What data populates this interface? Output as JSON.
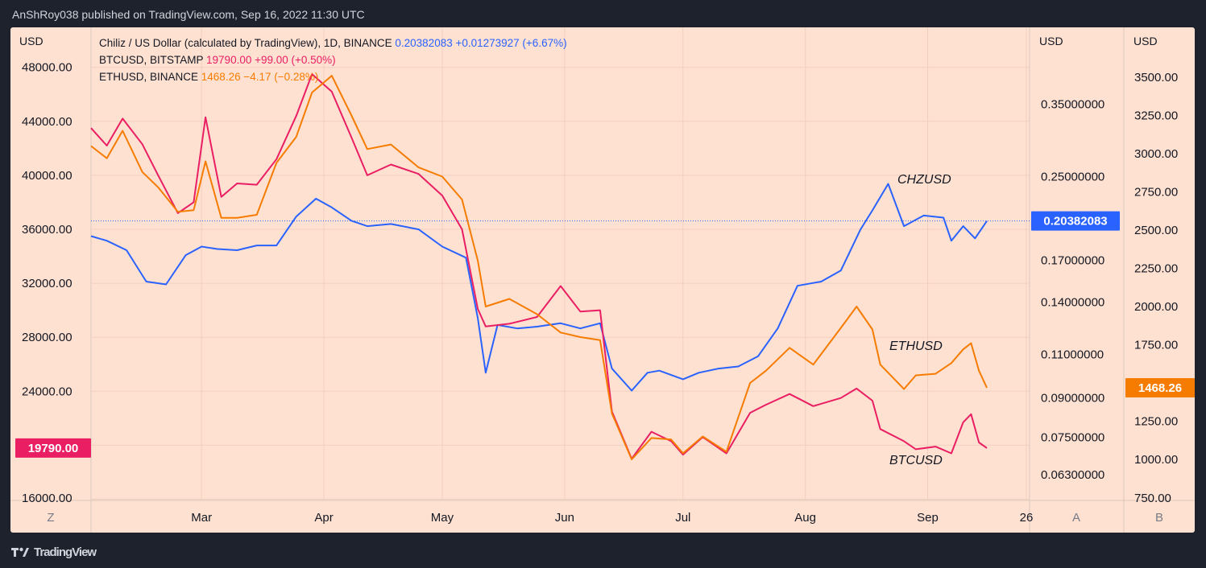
{
  "header": {
    "published_by": "AnShRoy038 published on TradingView.com, Sep 16, 2022 11:30 UTC"
  },
  "footer": {
    "brand": "TradingView",
    "logo_icon": "tradingview-logo-icon"
  },
  "legend": [
    {
      "name": "Chiliz / US Dollar (calculated by TradingView), 1D, BINANCE",
      "value": "0.20382083",
      "change": "+0.01273927 (+6.67%)",
      "color": "#2962ff"
    },
    {
      "name": "BTCUSD, BITSTAMP",
      "value": "19790.00",
      "change": "+99.00 (+0.50%)",
      "color": "#e91e63"
    },
    {
      "name": "ETHUSD, BINANCE",
      "value": "1468.26",
      "change": "−4.17 (−0.28%)",
      "color": "#f57c00"
    }
  ],
  "scales": {
    "left": {
      "currency": "USD",
      "ticks": [
        "48000.00",
        "44000.00",
        "40000.00",
        "36000.00",
        "32000.00",
        "28000.00",
        "24000.00",
        "16000.00"
      ],
      "last_value": "19790.00"
    },
    "middle": {
      "currency": "USD",
      "ticks": [
        "0.35000000",
        "0.25000000",
        "0.17000000",
        "0.14000000",
        "0.11000000",
        "0.09000000",
        "0.07500000",
        "0.06300000"
      ],
      "last_value": "0.20382083"
    },
    "right": {
      "currency": "USD",
      "ticks": [
        "3500.00",
        "3250.00",
        "3000.00",
        "2750.00",
        "2500.00",
        "2250.00",
        "2000.00",
        "1750.00",
        "1250.00",
        "1000.00",
        "750.00"
      ],
      "last_value": "1468.26"
    }
  },
  "time_axis": {
    "labels": [
      "Mar",
      "Apr",
      "May",
      "Jun",
      "Jul",
      "Aug",
      "Sep",
      "26"
    ],
    "corner_left": "Z",
    "corner_mid": "A",
    "corner_right": "B"
  },
  "annotations": [
    "CHZUSD",
    "ETHUSD",
    "BTCUSD"
  ],
  "chart_data": {
    "type": "line",
    "x_range": [
      "2022-02-01",
      "2022-09-16"
    ],
    "series": [
      {
        "name": "CHZUSD",
        "axis": "middle",
        "color": "#2962ff",
        "scale": "log",
        "points": [
          [
            "2022-02-01",
            0.19
          ],
          [
            "2022-02-05",
            0.186
          ],
          [
            "2022-02-10",
            0.178
          ],
          [
            "2022-02-15",
            0.154
          ],
          [
            "2022-02-20",
            0.152
          ],
          [
            "2022-02-25",
            0.174
          ],
          [
            "2022-03-01",
            0.181
          ],
          [
            "2022-03-05",
            0.179
          ],
          [
            "2022-03-10",
            0.178
          ],
          [
            "2022-03-15",
            0.182
          ],
          [
            "2022-03-20",
            0.182
          ],
          [
            "2022-03-25",
            0.208
          ],
          [
            "2022-03-30",
            0.226
          ],
          [
            "2022-04-03",
            0.217
          ],
          [
            "2022-04-08",
            0.204
          ],
          [
            "2022-04-12",
            0.199
          ],
          [
            "2022-04-18",
            0.201
          ],
          [
            "2022-04-25",
            0.196
          ],
          [
            "2022-05-01",
            0.181
          ],
          [
            "2022-05-07",
            0.172
          ],
          [
            "2022-05-10",
            0.13
          ],
          [
            "2022-05-12",
            0.101
          ],
          [
            "2022-05-15",
            0.126
          ],
          [
            "2022-05-20",
            0.124
          ],
          [
            "2022-05-25",
            0.125
          ],
          [
            "2022-05-31",
            0.127
          ],
          [
            "2022-06-05",
            0.124
          ],
          [
            "2022-06-10",
            0.127
          ],
          [
            "2022-06-13",
            0.103
          ],
          [
            "2022-06-18",
            0.093
          ],
          [
            "2022-06-22",
            0.101
          ],
          [
            "2022-06-25",
            0.102
          ],
          [
            "2022-07-01",
            0.098
          ],
          [
            "2022-07-05",
            0.101
          ],
          [
            "2022-07-10",
            0.103
          ],
          [
            "2022-07-15",
            0.104
          ],
          [
            "2022-07-20",
            0.109
          ],
          [
            "2022-07-25",
            0.124
          ],
          [
            "2022-07-30",
            0.151
          ],
          [
            "2022-08-05",
            0.154
          ],
          [
            "2022-08-10",
            0.162
          ],
          [
            "2022-08-15",
            0.196
          ],
          [
            "2022-08-18",
            0.214
          ],
          [
            "2022-08-22",
            0.242
          ],
          [
            "2022-08-26",
            0.199
          ],
          [
            "2022-08-31",
            0.209
          ],
          [
            "2022-09-05",
            0.207
          ],
          [
            "2022-09-07",
            0.186
          ],
          [
            "2022-09-10",
            0.199
          ],
          [
            "2022-09-13",
            0.188
          ],
          [
            "2022-09-16",
            0.2038
          ]
        ]
      },
      {
        "name": "BTCUSD",
        "axis": "left",
        "color": "#e91e63",
        "scale": "linear",
        "points": [
          [
            "2022-02-01",
            43500
          ],
          [
            "2022-02-05",
            42200
          ],
          [
            "2022-02-09",
            44200
          ],
          [
            "2022-02-14",
            42300
          ],
          [
            "2022-02-18",
            40000
          ],
          [
            "2022-02-23",
            37200
          ],
          [
            "2022-02-27",
            38000
          ],
          [
            "2022-03-02",
            44300
          ],
          [
            "2022-03-06",
            38400
          ],
          [
            "2022-03-10",
            39400
          ],
          [
            "2022-03-15",
            39300
          ],
          [
            "2022-03-20",
            41200
          ],
          [
            "2022-03-25",
            44400
          ],
          [
            "2022-03-29",
            47500
          ],
          [
            "2022-04-03",
            46200
          ],
          [
            "2022-04-08",
            42800
          ],
          [
            "2022-04-12",
            40000
          ],
          [
            "2022-04-18",
            40800
          ],
          [
            "2022-04-25",
            40100
          ],
          [
            "2022-05-01",
            38500
          ],
          [
            "2022-05-06",
            36000
          ],
          [
            "2022-05-10",
            30100
          ],
          [
            "2022-05-12",
            28800
          ],
          [
            "2022-05-18",
            29000
          ],
          [
            "2022-05-25",
            29500
          ],
          [
            "2022-05-31",
            31800
          ],
          [
            "2022-06-05",
            29900
          ],
          [
            "2022-06-10",
            30000
          ],
          [
            "2022-06-13",
            22500
          ],
          [
            "2022-06-18",
            19000
          ],
          [
            "2022-06-23",
            21000
          ],
          [
            "2022-06-28",
            20300
          ],
          [
            "2022-07-01",
            19300
          ],
          [
            "2022-07-06",
            20600
          ],
          [
            "2022-07-12",
            19400
          ],
          [
            "2022-07-18",
            22400
          ],
          [
            "2022-07-22",
            23000
          ],
          [
            "2022-07-28",
            23800
          ],
          [
            "2022-08-03",
            22900
          ],
          [
            "2022-08-10",
            23500
          ],
          [
            "2022-08-14",
            24200
          ],
          [
            "2022-08-18",
            23300
          ],
          [
            "2022-08-20",
            21200
          ],
          [
            "2022-08-26",
            20300
          ],
          [
            "2022-08-29",
            19700
          ],
          [
            "2022-09-03",
            19900
          ],
          [
            "2022-09-07",
            19400
          ],
          [
            "2022-09-10",
            21700
          ],
          [
            "2022-09-12",
            22300
          ],
          [
            "2022-09-14",
            20200
          ],
          [
            "2022-09-16",
            19790
          ]
        ]
      },
      {
        "name": "ETHUSD",
        "axis": "right",
        "color": "#f57c00",
        "scale": "linear",
        "points": [
          [
            "2022-02-01",
            3050
          ],
          [
            "2022-02-05",
            2970
          ],
          [
            "2022-02-09",
            3150
          ],
          [
            "2022-02-14",
            2880
          ],
          [
            "2022-02-18",
            2780
          ],
          [
            "2022-02-23",
            2620
          ],
          [
            "2022-02-27",
            2630
          ],
          [
            "2022-03-02",
            2950
          ],
          [
            "2022-03-06",
            2580
          ],
          [
            "2022-03-10",
            2580
          ],
          [
            "2022-03-15",
            2600
          ],
          [
            "2022-03-20",
            2940
          ],
          [
            "2022-03-25",
            3110
          ],
          [
            "2022-03-29",
            3400
          ],
          [
            "2022-04-03",
            3510
          ],
          [
            "2022-04-08",
            3250
          ],
          [
            "2022-04-12",
            3030
          ],
          [
            "2022-04-18",
            3060
          ],
          [
            "2022-04-25",
            2910
          ],
          [
            "2022-05-01",
            2850
          ],
          [
            "2022-05-06",
            2700
          ],
          [
            "2022-05-10",
            2300
          ],
          [
            "2022-05-12",
            2000
          ],
          [
            "2022-05-18",
            2050
          ],
          [
            "2022-05-25",
            1950
          ],
          [
            "2022-05-31",
            1830
          ],
          [
            "2022-06-05",
            1800
          ],
          [
            "2022-06-10",
            1780
          ],
          [
            "2022-06-13",
            1300
          ],
          [
            "2022-06-18",
            1000
          ],
          [
            "2022-06-23",
            1140
          ],
          [
            "2022-06-28",
            1130
          ],
          [
            "2022-07-01",
            1040
          ],
          [
            "2022-07-06",
            1150
          ],
          [
            "2022-07-12",
            1050
          ],
          [
            "2022-07-18",
            1500
          ],
          [
            "2022-07-22",
            1580
          ],
          [
            "2022-07-28",
            1730
          ],
          [
            "2022-08-03",
            1620
          ],
          [
            "2022-08-10",
            1860
          ],
          [
            "2022-08-14",
            2000
          ],
          [
            "2022-08-18",
            1850
          ],
          [
            "2022-08-20",
            1620
          ],
          [
            "2022-08-26",
            1460
          ],
          [
            "2022-08-29",
            1550
          ],
          [
            "2022-09-03",
            1560
          ],
          [
            "2022-09-07",
            1630
          ],
          [
            "2022-09-10",
            1720
          ],
          [
            "2022-09-12",
            1760
          ],
          [
            "2022-09-14",
            1580
          ],
          [
            "2022-09-16",
            1468.26
          ]
        ]
      }
    ],
    "current_values": {
      "CHZUSD": 0.20382083,
      "BTCUSD": 19790.0,
      "ETHUSD": 1468.26
    }
  }
}
